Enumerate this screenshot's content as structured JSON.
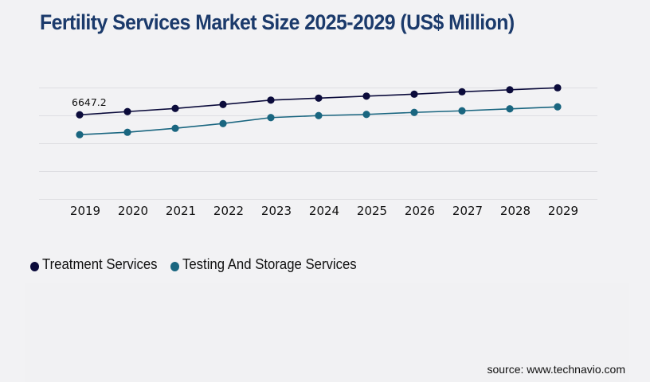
{
  "chart_data": {
    "type": "line",
    "title": "Fertility Services Market Size 2025-2029 (US$ Million)",
    "xlabel": "",
    "ylabel": "",
    "categories": [
      "2019",
      "2020",
      "2021",
      "2022",
      "2023",
      "2024",
      "2025",
      "2026",
      "2027",
      "2028",
      "2029"
    ],
    "ylim": [
      0,
      8800
    ],
    "y_gridlines": [
      0,
      2200,
      4400,
      6600,
      8800
    ],
    "grid": true,
    "legend_position": "bottom-left",
    "series": [
      {
        "name": "Treatment Services",
        "color": "#0b0b3b",
        "values": [
          6647.2,
          6898,
          7149,
          7462,
          7807,
          7964,
          8121,
          8277,
          8465,
          8622,
          8779
        ]
      },
      {
        "name": "Testing And Storage Services",
        "color": "#1a6680",
        "values": [
          5079,
          5267,
          5581,
          5957,
          6427,
          6584,
          6678,
          6835,
          6961,
          7117,
          7274
        ]
      }
    ],
    "annotations": [
      {
        "series": 0,
        "index": 0,
        "text": "6647.2"
      }
    ]
  },
  "legend": {
    "items": [
      {
        "label": "Treatment Services",
        "color": "#0b0b3b"
      },
      {
        "label": "Testing And Storage Services",
        "color": "#1a6680"
      }
    ]
  },
  "source": "source: www.technavio.com",
  "colors": {
    "title": "#1b3a6b",
    "gridline": "#dedee2",
    "background": "#f2f2f4"
  }
}
